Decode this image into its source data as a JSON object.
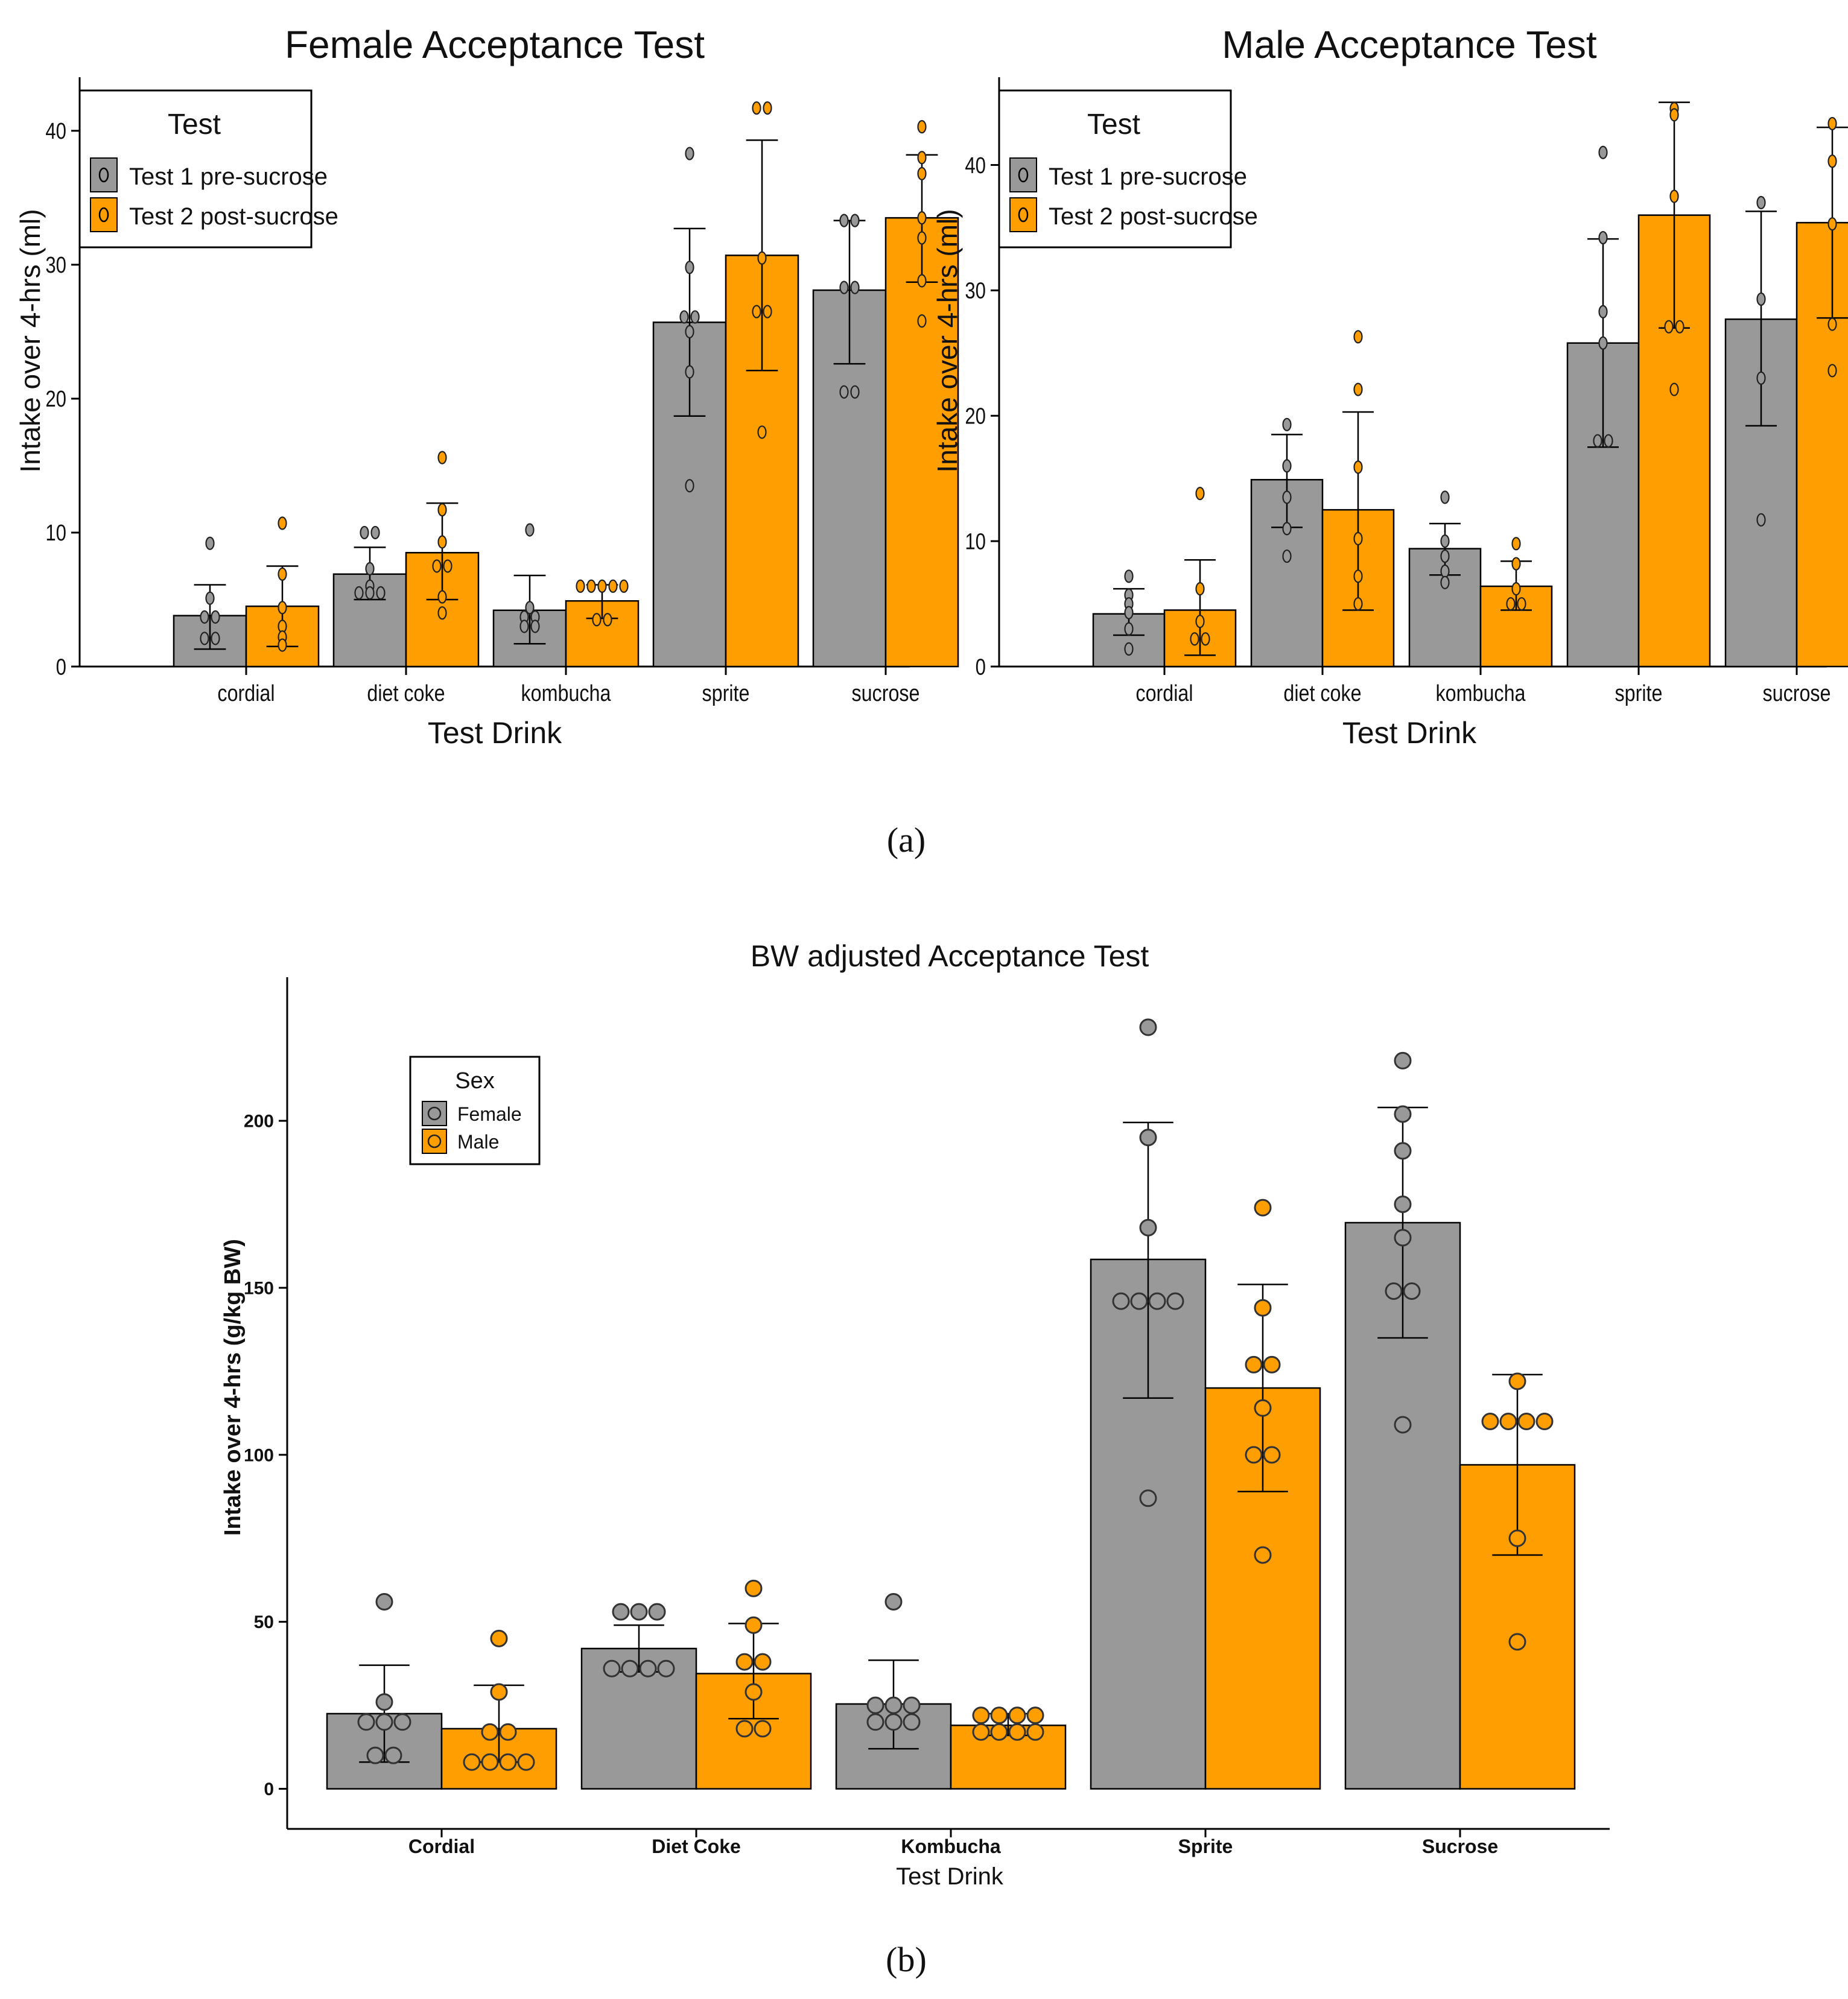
{
  "colors": {
    "gray": "#999999",
    "orange": "#FF9E00",
    "axis": "#000000"
  },
  "panel_labels": {
    "a": "(a)",
    "b": "(b)"
  },
  "icons": {
    "legend_marker": "diamond-point-icon",
    "legend_marker_b": "circle-point-icon"
  },
  "chart_data": [
    {
      "id": "female",
      "type": "bar",
      "title": "Female Acceptance Test",
      "xlabel": "Test Drink",
      "ylabel": "Intake over 4-hrs (ml)",
      "ylim": [
        0,
        44
      ],
      "yticks": [
        0,
        10,
        20,
        30,
        40
      ],
      "categories": [
        "cordial",
        "diet coke",
        "kombucha",
        "sprite",
        "sucrose"
      ],
      "legend": {
        "title": "Test",
        "position": "top-left",
        "entries": [
          "Test 1 pre-sucrose",
          "Test 2 post-sucrose"
        ]
      },
      "series": [
        {
          "name": "Test 1 pre-sucrose",
          "color": "gray",
          "values": [
            3.8,
            6.9,
            4.2,
            25.7,
            28.1
          ],
          "err_low": [
            1.3,
            5.0,
            1.7,
            18.7,
            22.6
          ],
          "err_high": [
            6.1,
            8.9,
            6.8,
            32.7,
            33.3
          ],
          "points": [
            [
              9.2,
              5.1,
              3.7,
              3.7,
              2.1,
              2.1
            ],
            [
              10.0,
              10.0,
              7.3,
              6.0,
              5.5,
              5.5,
              5.5
            ],
            [
              10.2,
              4.4,
              3.7,
              3.7,
              3.0,
              3.0
            ],
            [
              38.3,
              29.8,
              26.1,
              26.1,
              25.0,
              22.0,
              13.5
            ],
            [
              33.3,
              33.3,
              28.3,
              28.3,
              20.5,
              20.5
            ]
          ]
        },
        {
          "name": "Test 2 post-sucrose",
          "color": "orange",
          "values": [
            4.5,
            8.5,
            4.9,
            30.7,
            33.5
          ],
          "err_low": [
            1.5,
            5.0,
            3.6,
            22.1,
            28.7
          ],
          "err_high": [
            7.5,
            12.2,
            6.1,
            39.3,
            38.2
          ],
          "points": [
            [
              10.7,
              6.9,
              4.4,
              3.0,
              2.2,
              1.6
            ],
            [
              15.6,
              11.7,
              9.3,
              7.5,
              7.5,
              5.2,
              4.0
            ],
            [
              6.0,
              6.0,
              6.0,
              6.0,
              6.0,
              3.5,
              3.5
            ],
            [
              41.7,
              41.7,
              30.5,
              26.5,
              26.5,
              17.5
            ],
            [
              40.3,
              38.0,
              36.8,
              33.5,
              32.0,
              28.8,
              25.8
            ]
          ]
        }
      ]
    },
    {
      "id": "male",
      "type": "bar",
      "title": "Male Acceptance Test",
      "xlabel": "Test Drink",
      "ylabel": "Intake over 4-hrs (ml)",
      "ylim": [
        0,
        47
      ],
      "yticks": [
        0,
        10,
        20,
        30,
        40
      ],
      "categories": [
        "cordial",
        "diet coke",
        "kombucha",
        "sprite",
        "sucrose"
      ],
      "legend": {
        "title": "Test",
        "position": "top-left",
        "entries": [
          "Test 1 pre-sucrose",
          "Test 2 post-sucrose"
        ]
      },
      "series": [
        {
          "name": "Test 1 pre-sucrose",
          "color": "gray",
          "values": [
            4.2,
            14.9,
            9.4,
            25.8,
            27.7
          ],
          "err_low": [
            2.5,
            11.1,
            7.3,
            17.5,
            19.2
          ],
          "err_high": [
            6.2,
            18.5,
            11.4,
            34.1,
            36.3
          ],
          "points": [
            [
              7.2,
              5.7,
              5.0,
              4.3,
              3.0,
              1.4
            ],
            [
              19.3,
              16.0,
              13.5,
              11.0,
              8.8
            ],
            [
              13.5,
              10.0,
              8.8,
              7.6,
              6.7
            ],
            [
              41.0,
              34.2,
              28.3,
              25.8,
              18.0,
              18.0
            ],
            [
              37.0,
              29.3,
              23.0,
              11.7
            ]
          ]
        },
        {
          "name": "Test 2 post-sucrose",
          "color": "orange",
          "values": [
            4.5,
            12.5,
            6.4,
            36.0,
            35.4
          ],
          "err_low": [
            0.9,
            4.5,
            4.5,
            27.0,
            27.8
          ],
          "err_high": [
            8.5,
            20.3,
            8.4,
            45.0,
            43.0
          ],
          "points": [
            [
              13.8,
              6.2,
              3.6,
              2.2,
              2.2
            ],
            [
              26.3,
              22.1,
              15.9,
              10.2,
              7.2,
              5.0
            ],
            [
              9.8,
              8.2,
              6.2,
              5.0,
              5.0
            ],
            [
              44.5,
              44.0,
              37.5,
              27.1,
              27.1,
              22.1
            ],
            [
              43.3,
              40.3,
              35.3,
              27.3,
              23.6
            ]
          ]
        }
      ]
    },
    {
      "id": "bw",
      "type": "bar",
      "title": "BW adjusted Acceptance Test",
      "xlabel": "Test Drink",
      "ylabel": "Intake over 4-hrs (g/kg BW)",
      "ylim": [
        -12,
        243
      ],
      "yticks": [
        0,
        50,
        100,
        150,
        200
      ],
      "categories": [
        "Cordial",
        "Diet Coke",
        "Kombucha",
        "Sprite",
        "Sucrose"
      ],
      "legend": {
        "title": "Sex",
        "position": "upper-left",
        "entries": [
          "Female",
          "Male"
        ]
      },
      "series": [
        {
          "name": "Female",
          "color": "gray",
          "values": [
            22.5,
            42.0,
            25.4,
            158.5,
            169.5
          ],
          "err_low": [
            8.0,
            35.0,
            12.0,
            117.0,
            135.0
          ],
          "err_high": [
            37.0,
            49.0,
            38.5,
            199.5,
            204.0
          ],
          "points": [
            [
              56,
              26,
              20,
              20,
              20,
              10,
              10
            ],
            [
              53,
              53,
              53,
              36,
              36,
              36,
              36
            ],
            [
              56,
              25,
              25,
              25,
              20,
              20,
              20
            ],
            [
              228,
              195,
              168,
              146,
              146,
              146,
              146,
              87
            ],
            [
              218,
              202,
              191,
              175,
              165,
              149,
              149,
              109
            ]
          ]
        },
        {
          "name": "Male",
          "color": "orange",
          "values": [
            18.0,
            34.5,
            19.0,
            120.0,
            97.0
          ],
          "err_low": [
            8.0,
            21.0,
            16.0,
            89.0,
            70.0
          ],
          "err_high": [
            31.0,
            49.5,
            22.5,
            151.0,
            124.0
          ],
          "points": [
            [
              45,
              29,
              17,
              17,
              8,
              8,
              8,
              8
            ],
            [
              60,
              49,
              38,
              38,
              29,
              18,
              18
            ],
            [
              22,
              22,
              22,
              22,
              17,
              17,
              17,
              17
            ],
            [
              174,
              144,
              127,
              127,
              114,
              100,
              100,
              70
            ],
            [
              122,
              110,
              110,
              110,
              110,
              75,
              44
            ]
          ]
        }
      ]
    }
  ]
}
